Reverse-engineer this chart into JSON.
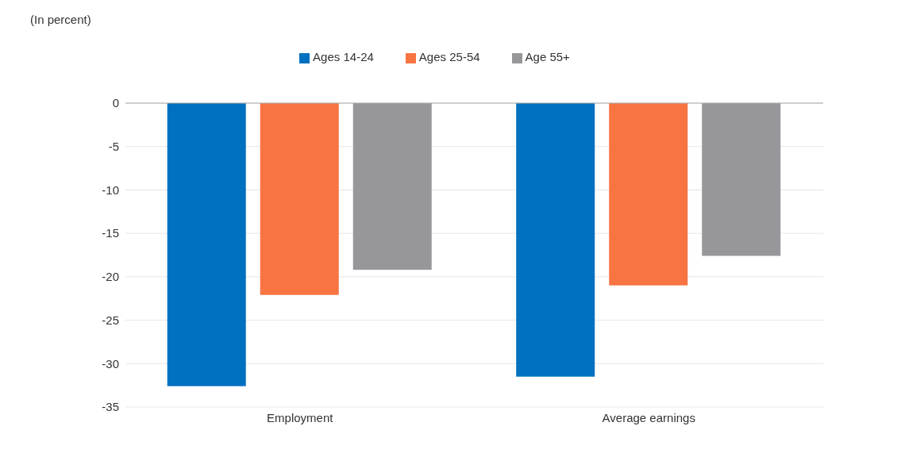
{
  "chart_data": {
    "type": "bar",
    "annotations": [
      "(In percent)"
    ],
    "categories": [
      "Employment",
      "Average earnings"
    ],
    "series": [
      {
        "name": "Ages 14-24",
        "color": "#0070c0",
        "values": [
          -32.6,
          -31.5
        ]
      },
      {
        "name": "Ages 25-54",
        "color": "#f87443",
        "values": [
          -22.1,
          -21.0
        ]
      },
      {
        "name": "Age 55+",
        "color": "#97979b",
        "values": [
          -19.2,
          -17.6
        ]
      }
    ],
    "ylim": [
      -35,
      0
    ],
    "yticks": [
      -35,
      -30,
      -25,
      -20,
      -15,
      -10,
      -5,
      0
    ],
    "grid": "y",
    "legend": "top"
  }
}
